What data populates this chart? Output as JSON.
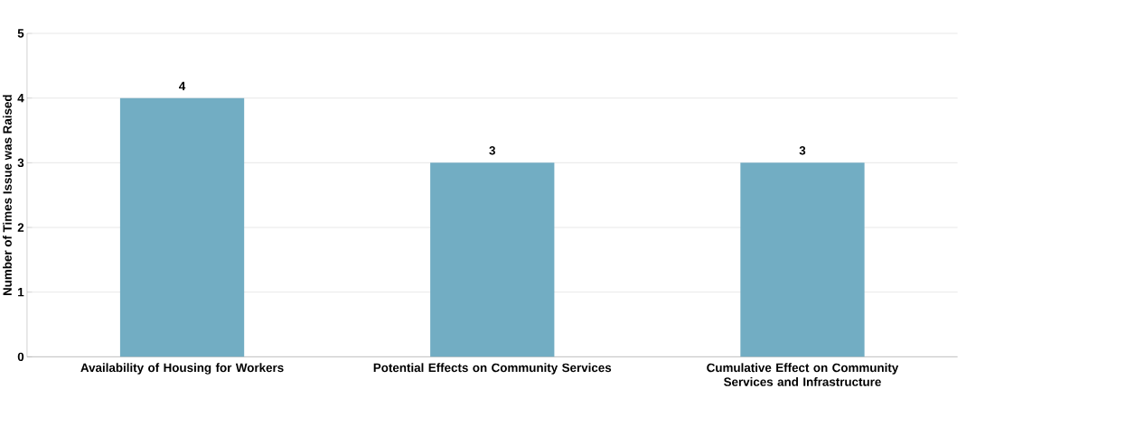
{
  "chart_data": {
    "type": "bar",
    "ylabel": "Number of Times Issue was Raised",
    "categories": [
      "Availability of Housing for Workers",
      "Potential Effects on Community Services",
      "Cumulative Effect on Community Services and Infrastructure"
    ],
    "values": [
      4,
      3,
      3
    ],
    "color": "#72adc3",
    "ylim": [
      0,
      5
    ],
    "yticks": [
      0,
      1,
      2,
      3,
      4,
      5
    ],
    "grid": "y",
    "data_labels": true
  }
}
